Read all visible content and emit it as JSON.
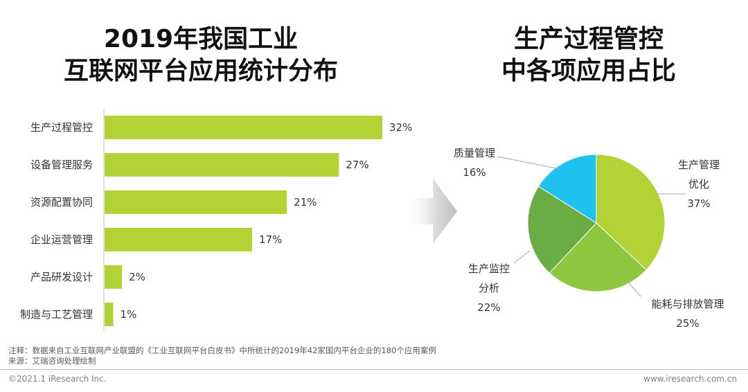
{
  "left_title": [
    "2019年我国工业",
    "互联网平台应用统计分布"
  ],
  "right_title": [
    "生产过程管控",
    "中各项应用占比"
  ],
  "chart_data": [
    {
      "type": "bar",
      "orientation": "horizontal",
      "categories": [
        "生产过程管控",
        "设备管理服务",
        "资源配置协同",
        "企业运营管理",
        "产品研发设计",
        "制造与工艺管理"
      ],
      "values": [
        32,
        27,
        21,
        17,
        2,
        1
      ],
      "value_labels": [
        "32%",
        "27%",
        "21%",
        "17%",
        "2%",
        "1%"
      ],
      "unit": "%",
      "xlim": [
        0,
        32
      ],
      "grid": false,
      "color": "#b2d235"
    },
    {
      "type": "pie",
      "slices": [
        {
          "label_lines": [
            "生产管理",
            "优化"
          ],
          "value": 37,
          "value_label": "37%",
          "color": "#b2d235"
        },
        {
          "label_lines": [
            "能耗与排放管理"
          ],
          "value": 25,
          "value_label": "25%",
          "color": "#8dc63f"
        },
        {
          "label_lines": [
            "生产监控",
            "分析"
          ],
          "value": 22,
          "value_label": "22%",
          "color": "#6aad45"
        },
        {
          "label_lines": [
            "质量管理"
          ],
          "value": 16,
          "value_label": "16%",
          "color": "#1fc2ef"
        }
      ]
    }
  ],
  "footer": {
    "note": "注释：数据来自工业互联网产业联盟的《工业互联网平台白皮书》中所统计的2019年42家国内平台企业的180个应用案例",
    "source": "来源：艾瑞咨询处理绘制",
    "copyright": "©2021.1 iResearch Inc.",
    "website": "www.iresearch.com.cn"
  }
}
